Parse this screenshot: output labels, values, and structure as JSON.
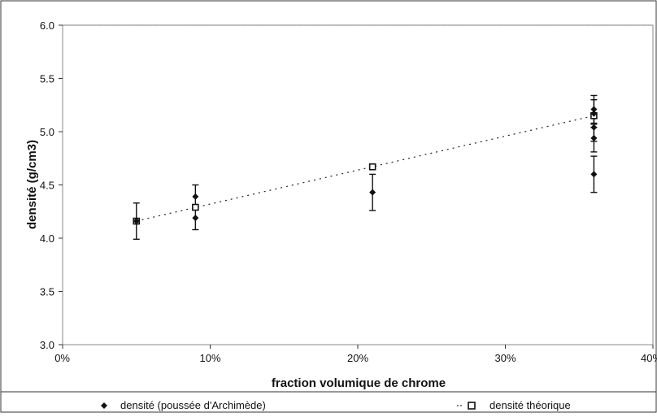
{
  "chart_data": {
    "type": "scatter",
    "xlabel": "fraction  volumique de chrome",
    "ylabel": "densité (g/cm3)",
    "xlim": [
      0,
      40
    ],
    "ylim": [
      3.0,
      6.0
    ],
    "x_ticks": [
      "0%",
      "10%",
      "20%",
      "30%",
      "40%"
    ],
    "y_ticks": [
      "3.0",
      "3.5",
      "4.0",
      "4.5",
      "5.0",
      "5.5",
      "6.0"
    ],
    "legend_position": "bottom",
    "series": [
      {
        "name": "densité (poussée d'Archimède)",
        "marker": "diamond",
        "color": "#111111",
        "points": [
          {
            "x": 5,
            "y": 4.16,
            "err": 0.17
          },
          {
            "x": 9,
            "y": 4.39,
            "err": 0.11
          },
          {
            "x": 9,
            "y": 4.19,
            "err": 0.11
          },
          {
            "x": 21,
            "y": 4.43,
            "err": 0.17
          },
          {
            "x": 36,
            "y": 5.21,
            "err": 0.13
          },
          {
            "x": 36,
            "y": 5.17,
            "err": 0.13
          },
          {
            "x": 36,
            "y": 5.04,
            "err": 0.13
          },
          {
            "x": 36,
            "y": 4.94,
            "err": 0.13
          },
          {
            "x": 36,
            "y": 4.6,
            "err": 0.17
          }
        ]
      },
      {
        "name": "densité théorique",
        "marker": "square-open",
        "color": "#111111",
        "trendline": "dotted",
        "points": [
          {
            "x": 5,
            "y": 4.16
          },
          {
            "x": 9,
            "y": 4.29
          },
          {
            "x": 21,
            "y": 4.67
          },
          {
            "x": 36,
            "y": 5.15
          }
        ]
      }
    ]
  }
}
